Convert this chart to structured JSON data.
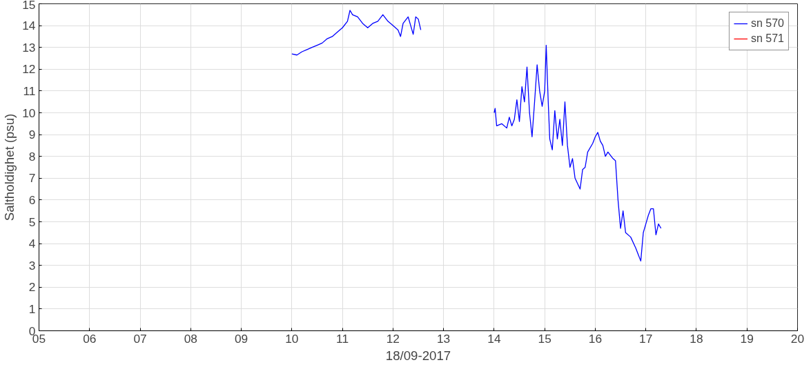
{
  "chart_data": {
    "type": "line",
    "xlabel": "18/09-2017",
    "ylabel": "Saltholdighet (psu)",
    "xlim": [
      5,
      20
    ],
    "ylim": [
      0,
      15
    ],
    "xticks": [
      {
        "value": 5,
        "label": "05"
      },
      {
        "value": 6,
        "label": "06"
      },
      {
        "value": 7,
        "label": "07"
      },
      {
        "value": 8,
        "label": "08"
      },
      {
        "value": 9,
        "label": "09"
      },
      10,
      11,
      12,
      13,
      14,
      15,
      16,
      17,
      18,
      19,
      20
    ],
    "yticks": [
      0,
      1,
      2,
      3,
      4,
      5,
      6,
      7,
      8,
      9,
      10,
      11,
      12,
      13,
      14,
      15
    ],
    "grid": true,
    "legend": "top right",
    "line_style": "solid",
    "marker": "none",
    "series": [
      {
        "name": "sn 570",
        "color": "#0000ff",
        "x": [
          10.0,
          10.1,
          10.2,
          10.3,
          10.4,
          10.5,
          10.6,
          10.7,
          10.8,
          10.9,
          11.0,
          11.1,
          11.15,
          11.2,
          11.3,
          11.4,
          11.5,
          11.6,
          11.7,
          11.8,
          11.9,
          12.0,
          12.1,
          12.15,
          12.2,
          12.3,
          12.35,
          12.4,
          12.45,
          12.5,
          12.55,
          13.3,
          14.0,
          14.02,
          14.05,
          14.15,
          14.25,
          14.3,
          14.35,
          14.4,
          14.45,
          14.5,
          14.55,
          14.6,
          14.65,
          14.7,
          14.75,
          14.8,
          14.85,
          14.9,
          14.95,
          15.0,
          15.03,
          15.07,
          15.1,
          15.15,
          15.2,
          15.25,
          15.3,
          15.35,
          15.4,
          15.45,
          15.5,
          15.55,
          15.6,
          15.7,
          15.75,
          15.8,
          15.85,
          15.95,
          16.0,
          16.05,
          16.1,
          16.15,
          16.2,
          16.25,
          16.35,
          16.4,
          16.45,
          16.5,
          16.55,
          16.6,
          16.7,
          16.8,
          16.85,
          16.9,
          16.95,
          17.0,
          17.05,
          17.1,
          17.15,
          17.2,
          17.25,
          17.3
        ],
        "values": [
          12.7,
          12.65,
          12.8,
          12.9,
          13.0,
          13.1,
          13.2,
          13.4,
          13.5,
          13.7,
          13.9,
          14.2,
          14.7,
          14.5,
          14.4,
          14.1,
          13.9,
          14.1,
          14.2,
          14.5,
          14.2,
          14.0,
          13.8,
          13.5,
          14.1,
          14.4,
          14.0,
          13.6,
          14.4,
          14.3,
          13.8,
          null,
          10.0,
          10.2,
          9.4,
          9.5,
          9.3,
          9.8,
          9.4,
          9.7,
          10.6,
          9.6,
          11.2,
          10.5,
          12.1,
          10.0,
          8.9,
          10.5,
          12.2,
          11.0,
          10.3,
          11.0,
          13.1,
          10.5,
          8.8,
          8.3,
          10.1,
          8.8,
          9.7,
          8.5,
          10.5,
          8.5,
          7.5,
          7.9,
          7.0,
          6.5,
          7.4,
          7.5,
          8.2,
          8.6,
          8.9,
          9.1,
          8.7,
          8.5,
          8.0,
          8.2,
          7.9,
          7.8,
          6.0,
          4.7,
          5.5,
          4.5,
          4.3,
          3.8,
          3.5,
          3.2,
          4.5,
          4.9,
          5.3,
          5.6,
          5.6,
          4.4,
          4.9,
          4.7
        ]
      },
      {
        "name": "sn 571",
        "color": "#ff0000"
      }
    ]
  }
}
